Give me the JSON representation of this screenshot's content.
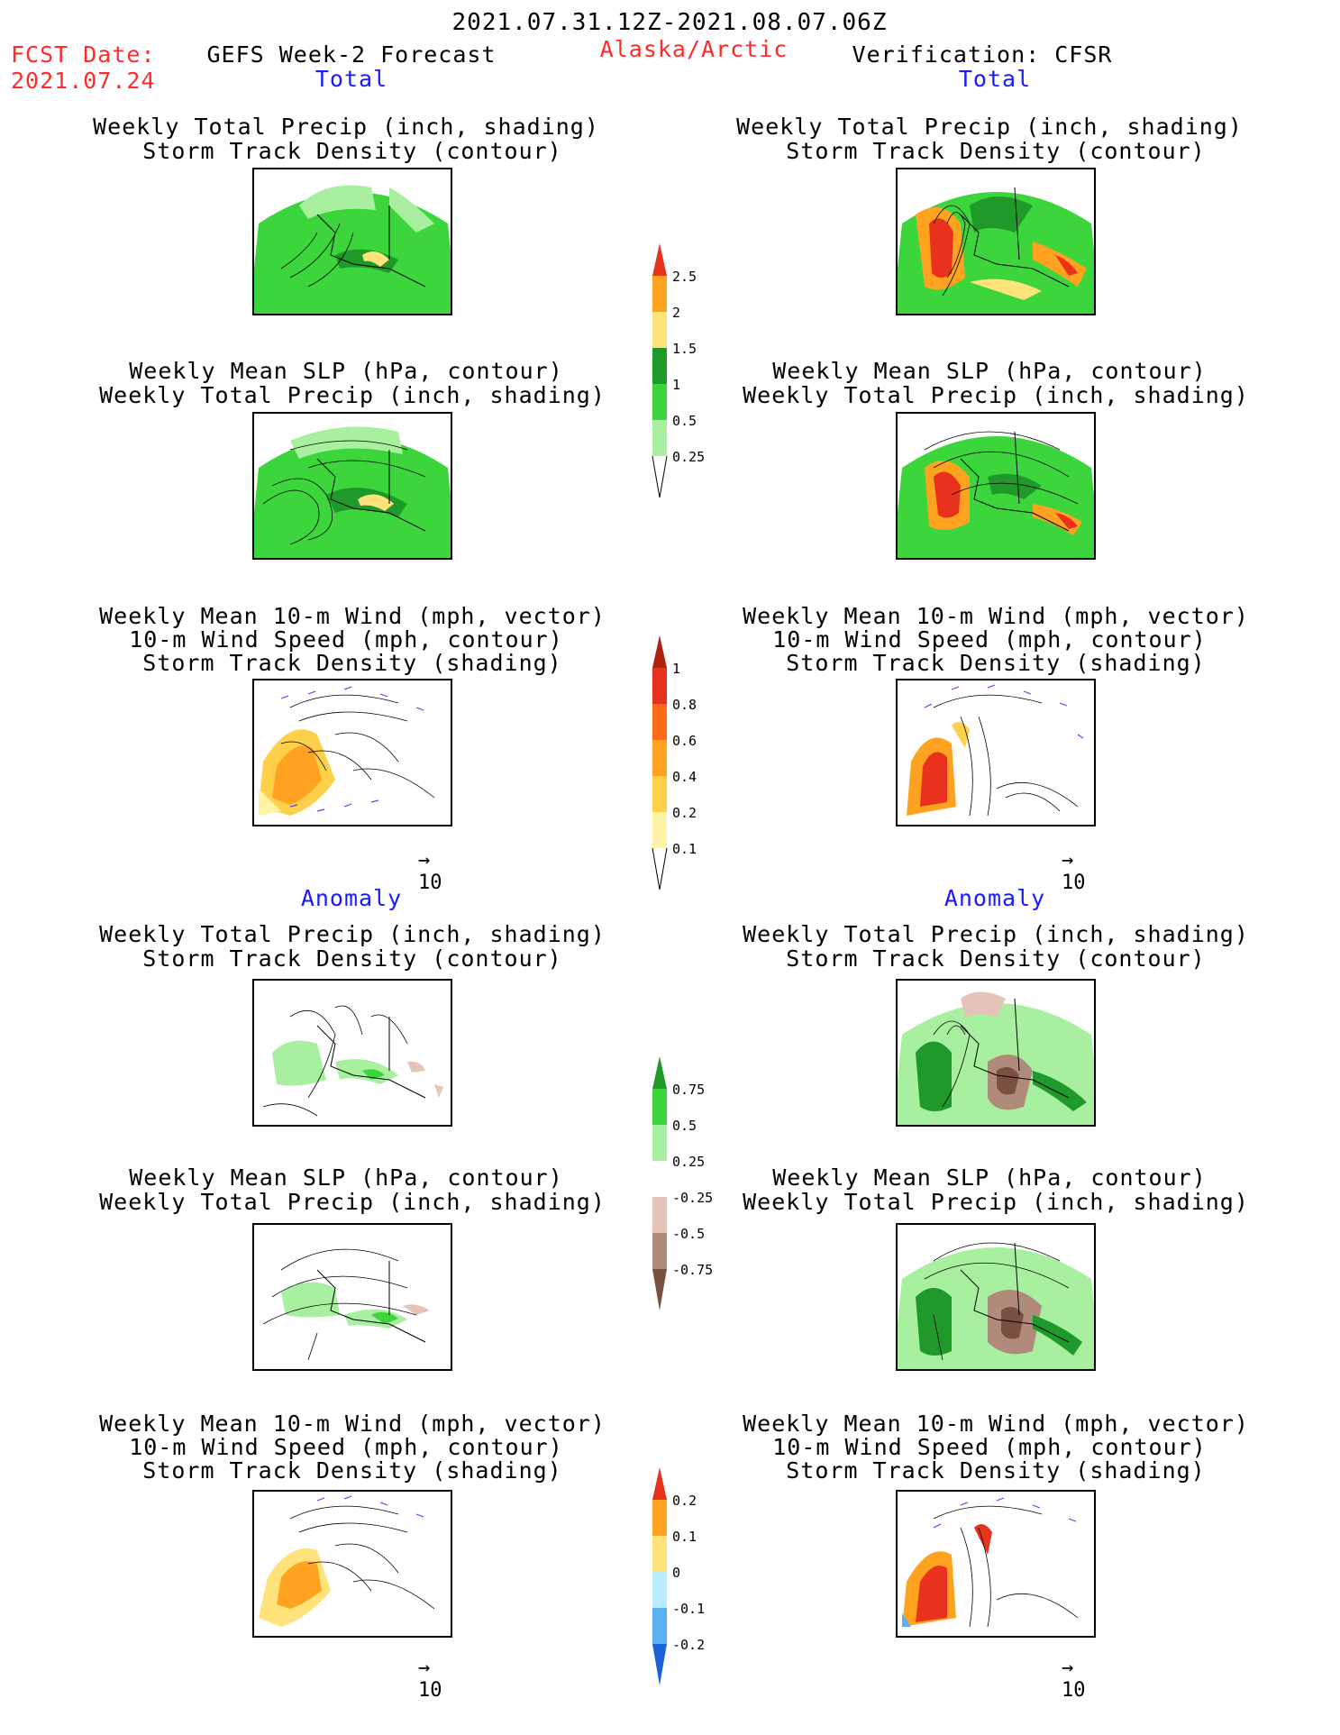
{
  "header": {
    "period": "2021.07.31.12Z-2021.08.07.06Z",
    "fcst_label": "FCST Date:",
    "fcst_date": "2021.07.24",
    "model": "GEFS Week-2 Forecast",
    "region": "Alaska/Arctic",
    "verification": "Verification: CFSR"
  },
  "sections": {
    "total": "Total",
    "anomaly": "Anomaly"
  },
  "titles": {
    "precip_track": [
      "Weekly Total Precip (inch, shading)",
      "Storm Track Density (contour)"
    ],
    "slp_precip": [
      "Weekly Mean SLP (hPa, contour)",
      "Weekly Total Precip (inch, shading)"
    ],
    "wind_track": [
      "Weekly Mean 10-m Wind (mph, vector)",
      "10-m Wind Speed (mph, contour)",
      "Storm Track Density (shading)"
    ]
  },
  "vector_ref": "10",
  "colorbars": {
    "precip_total": {
      "labels": [
        "2.5",
        "2",
        "1.5",
        "1",
        "0.5",
        "0.25"
      ],
      "colors": [
        "#e8321e",
        "#ffa21f",
        "#ffe27a",
        "#1f9a2a",
        "#3cd63c",
        "#a8f0a0"
      ]
    },
    "track_total": {
      "labels": [
        "1",
        "0.8",
        "0.6",
        "0.4",
        "0.2",
        "0.1"
      ],
      "colors": [
        "#b0200e",
        "#e8321e",
        "#ff6a1a",
        "#ffa21f",
        "#ffd04a",
        "#fff3a8",
        "#fffcd8"
      ]
    },
    "precip_anom": {
      "labels": [
        "0.75",
        "0.5",
        "0.25",
        "-0.25",
        "-0.5",
        "-0.75"
      ],
      "colors": [
        "#1f9a2a",
        "#3cd63c",
        "#a8f0a0",
        "#ffffff",
        "#e4c4b8",
        "#b08a7a",
        "#7a5040"
      ]
    },
    "track_anom": {
      "labels": [
        "0.2",
        "0.1",
        "0",
        "-0.1",
        "-0.2"
      ],
      "colors": [
        "#e8321e",
        "#ffa21f",
        "#ffe27a",
        "#b8ecff",
        "#5ab0f0",
        "#1a60d8"
      ]
    }
  }
}
